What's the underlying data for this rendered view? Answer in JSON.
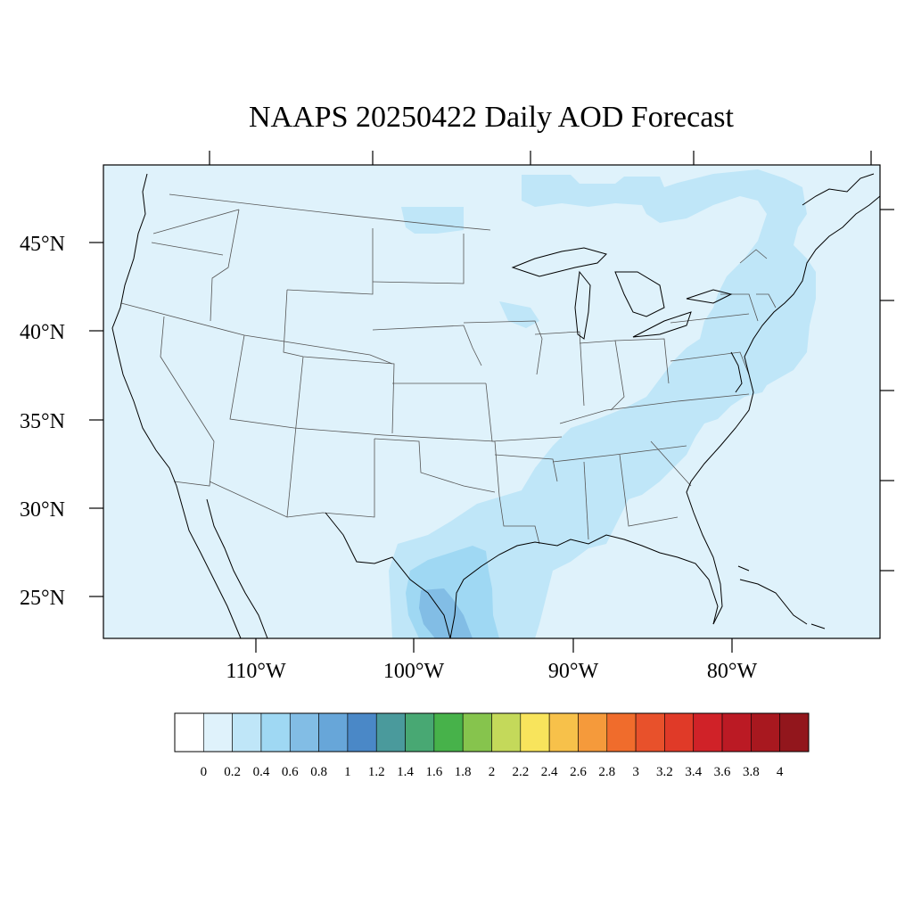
{
  "title": "NAAPS 20250422 Daily AOD Forecast",
  "map": {
    "region": "Continental United States",
    "projection": "lambert-conic",
    "lat_labels": [
      "45°N",
      "40°N",
      "35°N",
      "30°N",
      "25°N"
    ],
    "lon_labels": [
      "110°W",
      "100°W",
      "90°W",
      "80°W"
    ],
    "background_color": "#dff2fb",
    "coastline_color": "#000000",
    "boundary_color": "#555555"
  },
  "colorbar": {
    "labels": [
      "0",
      "0.2",
      "0.4",
      "0.6",
      "0.8",
      "1",
      "1.2",
      "1.4",
      "1.6",
      "1.8",
      "2",
      "2.2",
      "2.4",
      "2.6",
      "2.8",
      "3",
      "3.2",
      "3.4",
      "3.6",
      "3.8",
      "4"
    ],
    "colors": [
      "#ffffff",
      "#dff2fb",
      "#bfe6f8",
      "#9fd8f3",
      "#82bde5",
      "#67a6d9",
      "#4a88c7",
      "#4a9a9c",
      "#48a873",
      "#47b24a",
      "#86c44d",
      "#c4d95a",
      "#f8e45c",
      "#f7c14a",
      "#f59a3b",
      "#f06c2c",
      "#e8512b",
      "#e03a28",
      "#d02228",
      "#bb1a24",
      "#a8181f",
      "#92161c"
    ]
  },
  "aod_features": [
    {
      "name": "northern-plume",
      "level": 0.3
    },
    {
      "name": "northeast-coast-plume",
      "level": 0.3
    },
    {
      "name": "southeast-band",
      "level": 0.3
    },
    {
      "name": "texas-coast-plume",
      "level": 0.5
    },
    {
      "name": "south-texas-core",
      "level": 0.9
    }
  ]
}
